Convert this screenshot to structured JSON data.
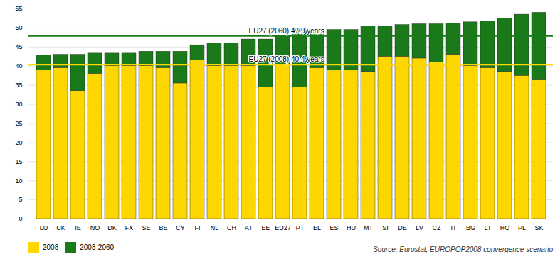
{
  "chart_data": {
    "type": "bar",
    "stacked": true,
    "categories": [
      "LU",
      "UK",
      "IE",
      "NO",
      "DK",
      "FX",
      "SE",
      "BE",
      "CY",
      "FI",
      "NL",
      "CH",
      "AT",
      "EE",
      "EU27",
      "PT",
      "EL",
      "ES",
      "HU",
      "MT",
      "SI",
      "DE",
      "LV",
      "CZ",
      "IT",
      "BG",
      "LT",
      "RO",
      "PL",
      "SK"
    ],
    "series": [
      {
        "name": "2008",
        "color": "#FFD700",
        "values": [
          38.9,
          39.5,
          33.5,
          38.0,
          40.0,
          40.0,
          40.0,
          39.5,
          35.5,
          41.5,
          40.0,
          40.0,
          40.0,
          34.5,
          40.4,
          34.5,
          39.5,
          39.0,
          39.0,
          38.5,
          42.5,
          42.5,
          42.0,
          41.0,
          43.0,
          40.0,
          39.5,
          38.5,
          37.5,
          36.5
        ]
      },
      {
        "name": "2008-2060",
        "color": "#1a7a1a",
        "values": [
          3.9,
          3.5,
          9.5,
          5.5,
          3.5,
          3.5,
          3.8,
          4.3,
          8.3,
          4.0,
          6.0,
          6.0,
          7.0,
          12.5,
          7.5,
          15.3,
          10.3,
          10.5,
          10.5,
          12.0,
          8.0,
          8.3,
          9.0,
          10.0,
          8.2,
          11.5,
          12.3,
          14.0,
          16.0,
          17.5
        ]
      }
    ],
    "annotations": [
      {
        "text": "EU27 (2060) 47.9 years",
        "y": 47.9,
        "color": "#1a7a1a"
      },
      {
        "text": "EU27 (2008) 40.4 years",
        "y": 40.4,
        "color": "#FFD700"
      }
    ],
    "source": "Source: Eurostat, EUROPOP2008 convergence scenario",
    "ylim": [
      0,
      55
    ],
    "yticks": [
      0,
      5,
      10,
      15,
      20,
      25,
      30,
      35,
      40,
      45,
      50,
      55
    ],
    "grid": true,
    "legend": "bottom"
  }
}
